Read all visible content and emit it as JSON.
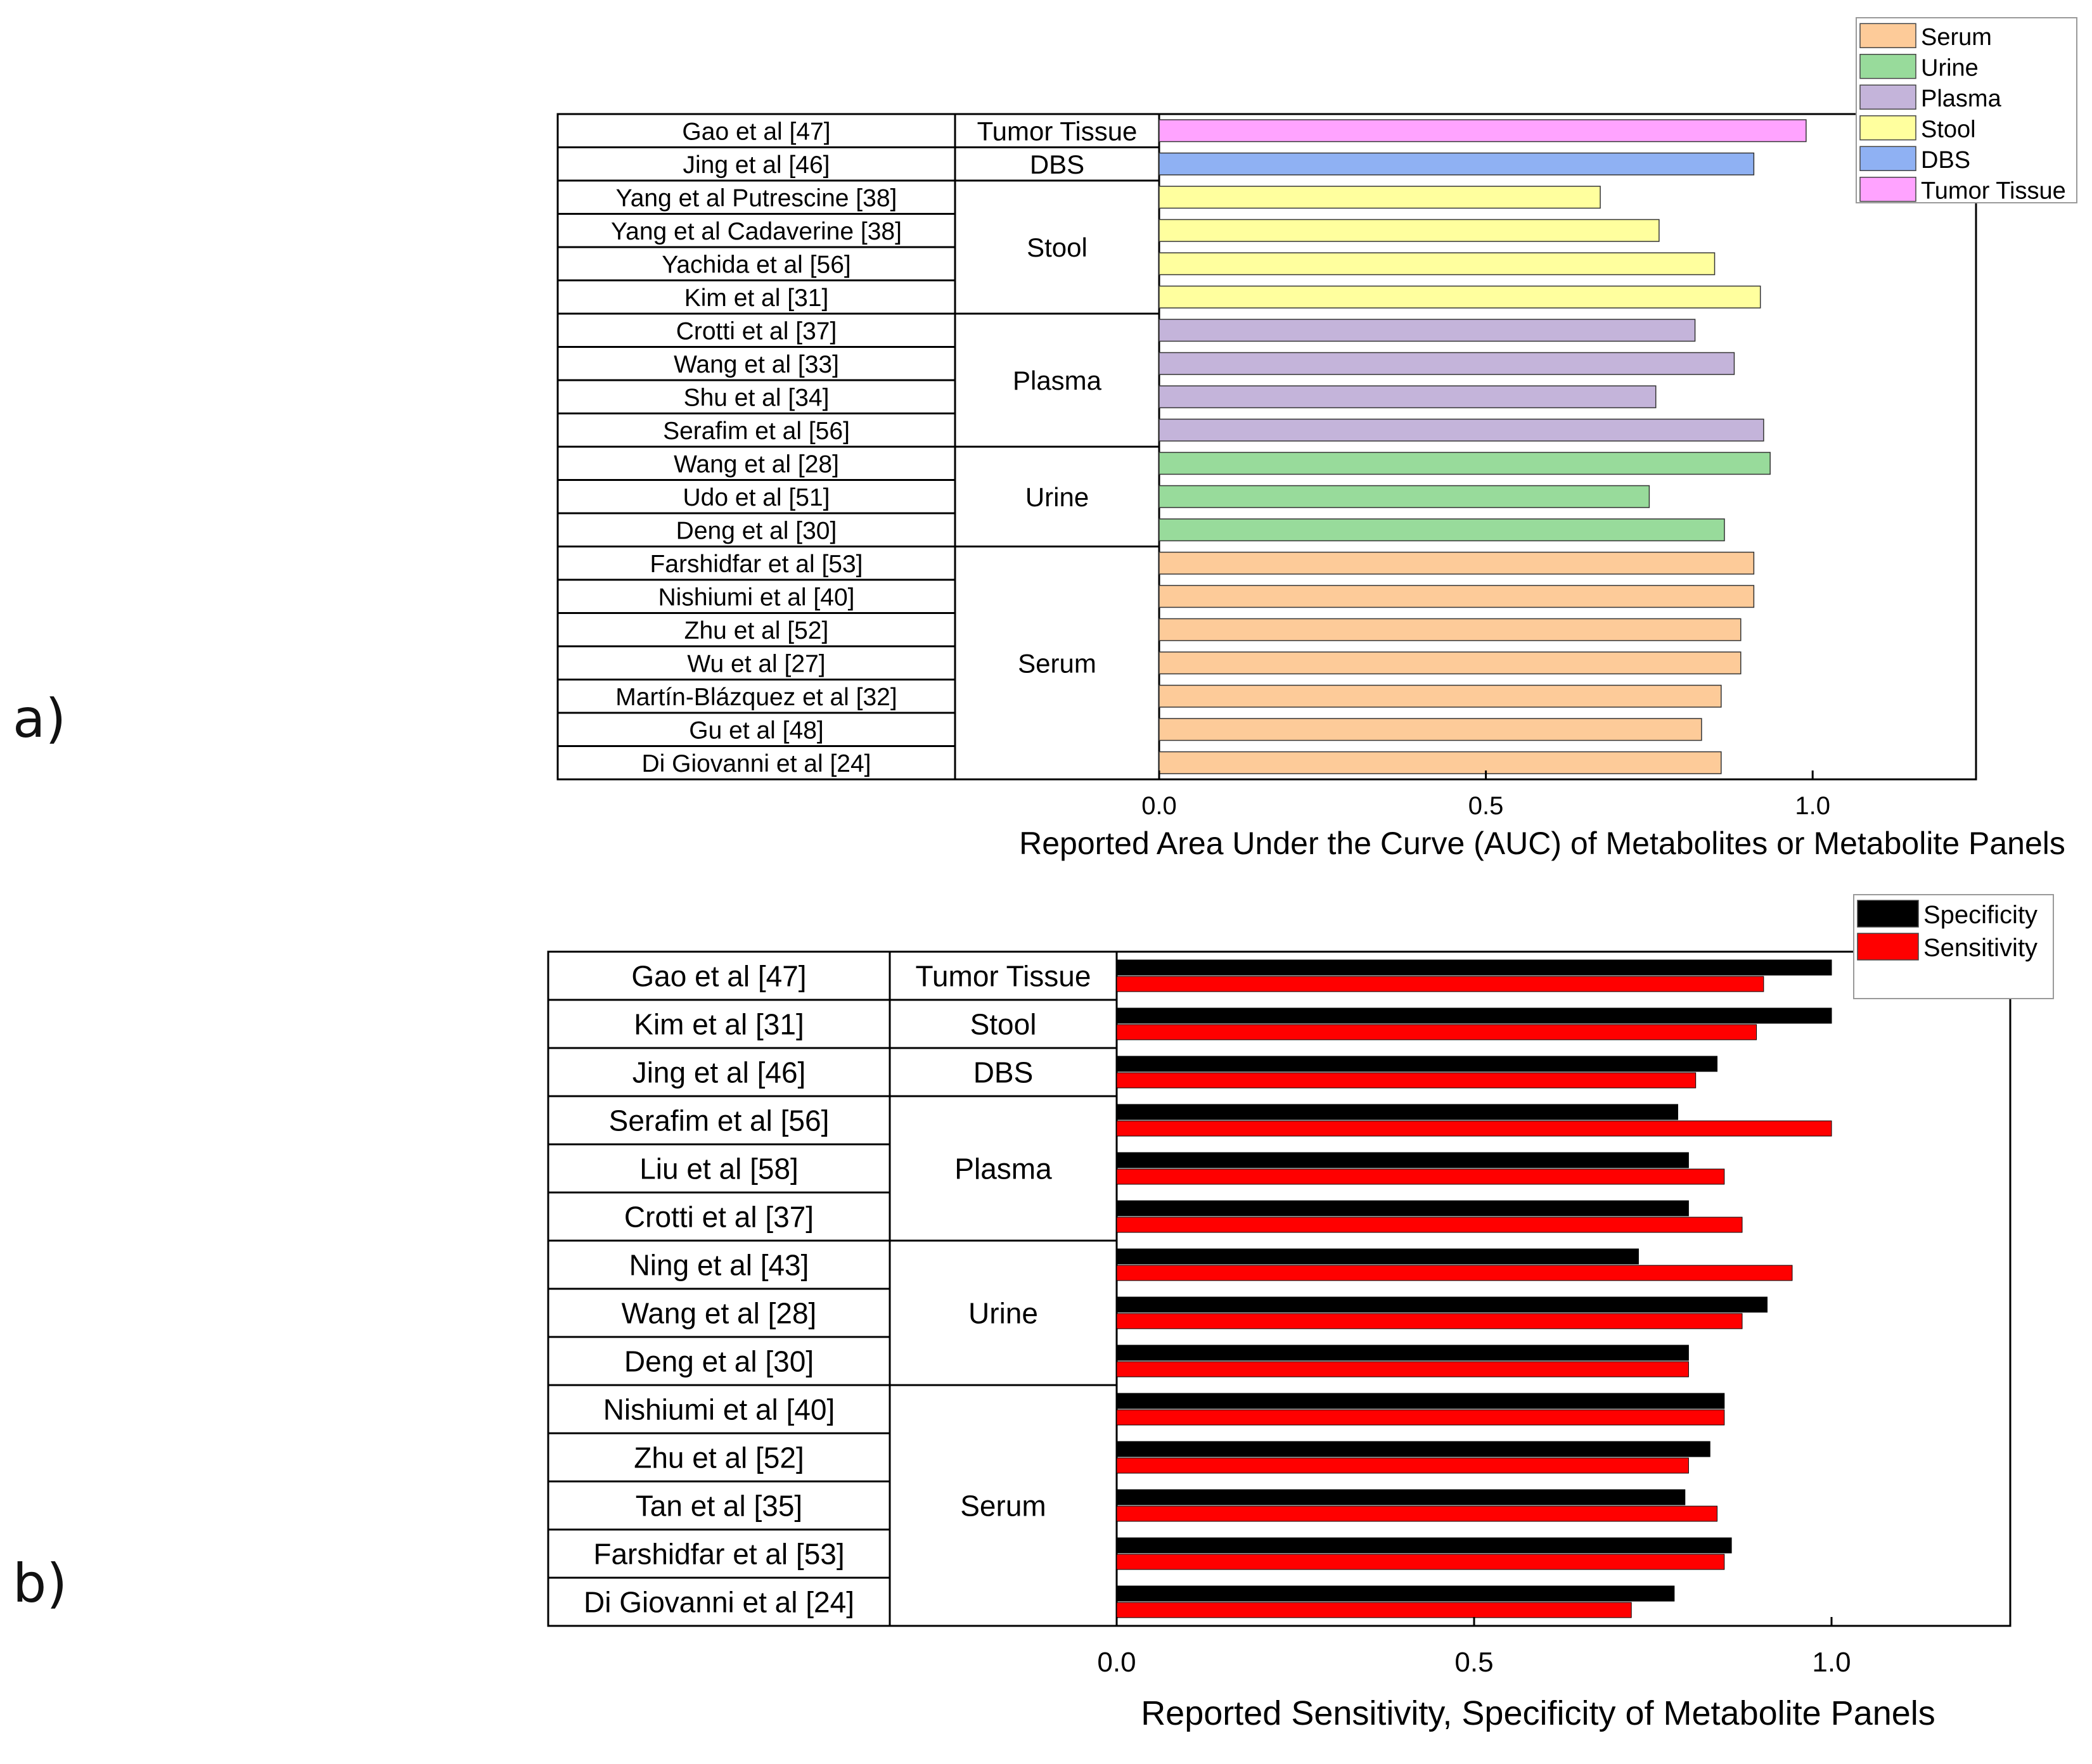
{
  "panel_labels": {
    "a": "a)",
    "b": "b)"
  },
  "colors": {
    "Serum": "#FDCB99",
    "Urine": "#98DB9B",
    "Plasma": "#C4B4DA",
    "Stool": "#FFFF9E",
    "DBS": "#8FB1F3",
    "Tumor Tissue": "#FFA3FF",
    "Specificity": "#000000",
    "Sensitivity": "#FF0000",
    "outline": "#000000"
  },
  "chart_data": [
    {
      "id": "a",
      "type": "bar",
      "orientation": "horizontal",
      "xlabel": "Reported Area Under the Curve (AUC) of Metabolites or Metabolite Panels",
      "xlim": [
        0,
        1.25
      ],
      "xticks": [
        0.0,
        0.5,
        1.0
      ],
      "xtick_labels": [
        "0.0",
        "0.5",
        "1.0"
      ],
      "legend": {
        "position": "top-right",
        "entries": [
          "Serum",
          "Urine",
          "Plasma",
          "Stool",
          "DBS",
          "Tumor Tissue"
        ]
      },
      "groups": [
        {
          "name": "Tumor Tissue",
          "rows": [
            {
              "study": "Gao et al [47]",
              "value": 0.99
            }
          ]
        },
        {
          "name": "DBS",
          "rows": [
            {
              "study": "Jing et al [46]",
              "value": 0.91
            }
          ]
        },
        {
          "name": "Stool",
          "rows": [
            {
              "study": "Yang et al Putrescine [38]",
              "value": 0.675
            },
            {
              "study": "Yang et al Cadaverine [38]",
              "value": 0.765
            },
            {
              "study": "Yachida et al [56]",
              "value": 0.85
            },
            {
              "study": "Kim et al [31]",
              "value": 0.92
            }
          ]
        },
        {
          "name": "Plasma",
          "rows": [
            {
              "study": "Crotti et al [37]",
              "value": 0.82
            },
            {
              "study": "Wang et al [33]",
              "value": 0.88
            },
            {
              "study": "Shu et al [34]",
              "value": 0.76
            },
            {
              "study": "Serafim et al [56]",
              "value": 0.925
            }
          ]
        },
        {
          "name": "Urine",
          "rows": [
            {
              "study": "Wang et al [28]",
              "value": 0.935
            },
            {
              "study": "Udo et al [51]",
              "value": 0.75
            },
            {
              "study": "Deng et al [30]",
              "value": 0.865
            }
          ]
        },
        {
          "name": "Serum",
          "rows": [
            {
              "study": "Farshidfar et al [53]",
              "value": 0.91
            },
            {
              "study": "Nishiumi et al [40]",
              "value": 0.91
            },
            {
              "study": "Zhu et al [52]",
              "value": 0.89
            },
            {
              "study": "Wu et al [27]",
              "value": 0.89
            },
            {
              "study": "Martín-Blázquez et al [32]",
              "value": 0.86
            },
            {
              "study": "Gu et al [48]",
              "value": 0.83
            },
            {
              "study": "Di Giovanni et al [24]",
              "value": 0.86
            }
          ]
        }
      ]
    },
    {
      "id": "b",
      "type": "bar",
      "orientation": "horizontal",
      "xlabel": "Reported Sensitivity, Specificity of Metabolite Panels",
      "xlim": [
        0,
        1.25
      ],
      "xticks": [
        0.0,
        0.5,
        1.0
      ],
      "xtick_labels": [
        "0.0",
        "0.5",
        "1.0"
      ],
      "legend": {
        "position": "top-right",
        "entries": [
          "Specificity",
          "Sensitivity"
        ]
      },
      "series": [
        "Specificity",
        "Sensitivity"
      ],
      "groups": [
        {
          "name": "Tumor Tissue",
          "rows": [
            {
              "study": "Gao et al [47]",
              "specificity": 1.0,
              "sensitivity": 0.905
            }
          ]
        },
        {
          "name": "Stool",
          "rows": [
            {
              "study": "Kim et al [31]",
              "specificity": 1.0,
              "sensitivity": 0.895
            }
          ]
        },
        {
          "name": "DBS",
          "rows": [
            {
              "study": "Jing et al [46]",
              "specificity": 0.84,
              "sensitivity": 0.81
            }
          ]
        },
        {
          "name": "Plasma",
          "rows": [
            {
              "study": "Serafim et al [56]",
              "specificity": 0.785,
              "sensitivity": 1.0
            },
            {
              "study": "Liu et al [58]",
              "specificity": 0.8,
              "sensitivity": 0.85
            },
            {
              "study": "Crotti et al [37]",
              "specificity": 0.8,
              "sensitivity": 0.875
            }
          ]
        },
        {
          "name": "Urine",
          "rows": [
            {
              "study": "Ning et al [43]",
              "specificity": 0.73,
              "sensitivity": 0.945
            },
            {
              "study": "Wang et al [28]",
              "specificity": 0.91,
              "sensitivity": 0.875
            },
            {
              "study": "Deng et al [30]",
              "specificity": 0.8,
              "sensitivity": 0.8
            }
          ]
        },
        {
          "name": "Serum",
          "rows": [
            {
              "study": "Nishiumi et al [40]",
              "specificity": 0.85,
              "sensitivity": 0.85
            },
            {
              "study": "Zhu et al [52]",
              "specificity": 0.83,
              "sensitivity": 0.8
            },
            {
              "study": "Tan et al [35]",
              "specificity": 0.795,
              "sensitivity": 0.84
            },
            {
              "study": "Farshidfar et al [53]",
              "specificity": 0.86,
              "sensitivity": 0.85
            },
            {
              "study": "Di Giovanni et al [24]",
              "specificity": 0.78,
              "sensitivity": 0.72
            }
          ]
        }
      ]
    }
  ]
}
